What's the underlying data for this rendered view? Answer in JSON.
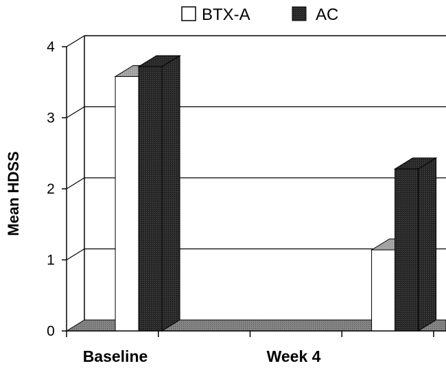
{
  "chart_data": {
    "type": "bar",
    "title": "",
    "xlabel": "",
    "ylabel": "Mean HDSS",
    "categories": [
      "Baseline",
      "Week 4"
    ],
    "series": [
      {
        "name": "BTX-A",
        "values": [
          3.58,
          1.14
        ],
        "color": "#ffffff"
      },
      {
        "name": "AC",
        "values": [
          3.72,
          2.28
        ],
        "color": "#2a2a2a"
      }
    ],
    "ylim": [
      0,
      4
    ],
    "yticks": [
      "0",
      "1",
      "2",
      "3",
      "4"
    ],
    "grid": true,
    "legend_position": "top",
    "floor_color": "#808080",
    "top_face_color": "#a6a6a6"
  }
}
